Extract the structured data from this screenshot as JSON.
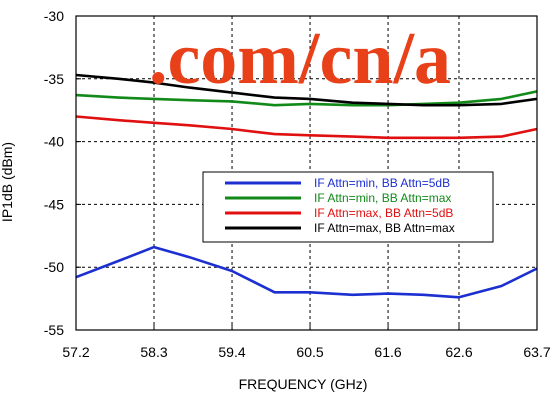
{
  "chart_data": {
    "type": "line",
    "title": "",
    "xlabel": "FREQUENCY (GHz)",
    "ylabel": "IP1dB (dBm)",
    "xlim": [
      57.2,
      63.7
    ],
    "ylim": [
      -55,
      -30
    ],
    "x_ticks": [
      "57.2",
      "58.3",
      "59.4",
      "60.5",
      "61.6",
      "62.6",
      "63.7"
    ],
    "y_ticks": [
      "-30",
      "-35",
      "-40",
      "-45",
      "-50",
      "-55"
    ],
    "grid": true,
    "legend_position": "center-right",
    "watermark": ".com/cn/a",
    "watermark_color": "#e8411a",
    "series": [
      {
        "name": "IF Attn=min, BB Attn=5dB",
        "color": "#1c2fd0",
        "x": [
          57.2,
          57.8,
          58.3,
          58.8,
          59.4,
          60.0,
          60.5,
          61.1,
          61.6,
          62.1,
          62.6,
          63.2,
          63.7
        ],
        "y": [
          -50.8,
          -49.5,
          -48.4,
          -49.2,
          -50.3,
          -52.0,
          -52.0,
          -52.2,
          -52.1,
          -52.2,
          -52.4,
          -51.5,
          -50.1
        ]
      },
      {
        "name": "IF Attn=min, BB Attn=max",
        "color": "#128a1a",
        "x": [
          57.2,
          57.8,
          58.3,
          58.8,
          59.4,
          60.0,
          60.5,
          61.1,
          61.6,
          62.1,
          62.6,
          63.2,
          63.7
        ],
        "y": [
          -36.3,
          -36.5,
          -36.6,
          -36.7,
          -36.8,
          -37.1,
          -37.0,
          -37.1,
          -37.1,
          -37.0,
          -36.9,
          -36.6,
          -36.0
        ]
      },
      {
        "name": "IF Attn=max, BB Attn=5dB",
        "color": "#e01010",
        "x": [
          57.2,
          57.8,
          58.3,
          58.8,
          59.4,
          60.0,
          60.5,
          61.1,
          61.6,
          62.1,
          62.6,
          63.2,
          63.7
        ],
        "y": [
          -38.0,
          -38.3,
          -38.5,
          -38.7,
          -39.0,
          -39.4,
          -39.5,
          -39.6,
          -39.7,
          -39.7,
          -39.7,
          -39.6,
          -39.0
        ]
      },
      {
        "name": "IF Attn=max, BB Attn=max",
        "color": "#000000",
        "x": [
          57.2,
          57.8,
          58.3,
          58.8,
          59.4,
          60.0,
          60.5,
          61.1,
          61.6,
          62.1,
          62.6,
          63.2,
          63.7
        ],
        "y": [
          -34.7,
          -35.0,
          -35.3,
          -35.7,
          -36.1,
          -36.5,
          -36.6,
          -36.9,
          -37.0,
          -37.1,
          -37.1,
          -37.0,
          -36.6
        ]
      }
    ]
  }
}
